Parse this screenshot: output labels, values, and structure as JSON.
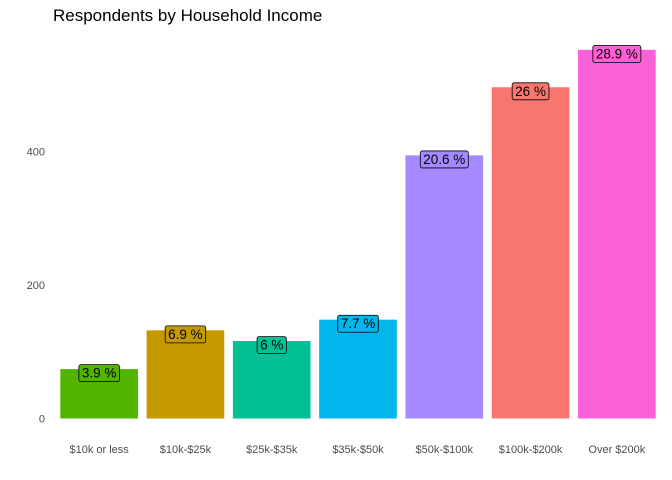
{
  "chart_data": {
    "type": "bar",
    "title": "Respondents by Household Income",
    "xlabel": "",
    "ylabel": "",
    "categories": [
      "$10k or less",
      "$10k-$25k",
      "$25k-$35k",
      "$35k-$50k",
      "$50k-$100k",
      "$100k-$200k",
      "Over $200k"
    ],
    "values": [
      74,
      132,
      116,
      148,
      394,
      496,
      552
    ],
    "labels": [
      "3.9 %",
      "6.9 %",
      "6 %",
      "7.7 %",
      "20.6 %",
      "26 %",
      "28.9 %"
    ],
    "colors": [
      "#53B400",
      "#C49A00",
      "#00C094",
      "#00B6EB",
      "#A58AFF",
      "#F8766D",
      "#FB61D7"
    ],
    "yticks": [
      0,
      200,
      400
    ],
    "ylim": [
      0,
      580
    ],
    "grid": false,
    "legend": "none"
  }
}
